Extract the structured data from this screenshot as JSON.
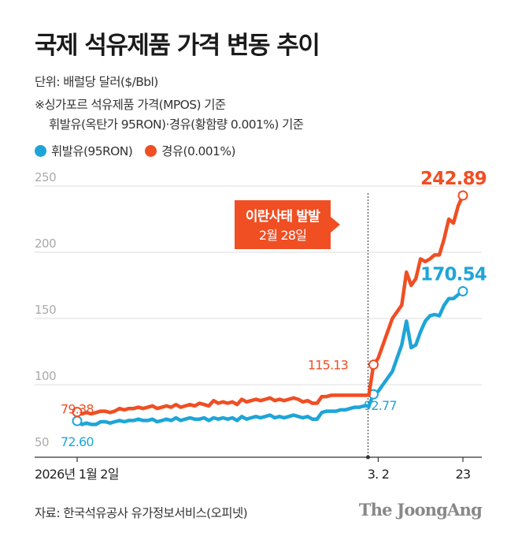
{
  "title": "국제 석유제품 가격 변동 추이",
  "notes": {
    "unit": "단위: 배럴당 달러($/Bbl)",
    "basis_line1": "※싱가포르 석유제품 가격(MPOS) 기준",
    "basis_line2": "휘발유(옥탄가 95RON)·경유(황함량 0.001%) 기준"
  },
  "source": "자료: 한국석유공사 유가정보서비스(오피넷)",
  "brand": "The JoongAng",
  "colors": {
    "gasoline": "#1ea5d8",
    "diesel": "#f04e23",
    "axis": "#bbbbbb",
    "text": "#222222"
  },
  "chart_data": {
    "type": "line",
    "ylim": [
      50,
      250
    ],
    "yticks": [
      "250",
      "200",
      "150",
      "100",
      "50"
    ],
    "x_tick_labels": [
      "2026년 1월 2일",
      "3. 2",
      "23"
    ],
    "event": {
      "label": "이란사태 발발",
      "date_label": "2월 28일"
    },
    "series": [
      {
        "name": "휘발유(95RON)",
        "color": "#1ea5d8",
        "values": [
          72.6,
          70,
          71,
          70,
          70,
          72,
          72,
          71,
          72,
          73,
          72,
          73,
          73,
          74,
          73,
          73,
          74,
          72,
          73,
          74,
          73,
          75,
          73,
          74,
          75,
          74,
          74,
          75,
          73,
          75,
          74,
          75,
          74,
          75,
          73,
          76,
          74,
          75,
          76,
          75,
          76,
          77,
          75,
          76,
          75,
          76,
          77,
          76,
          75,
          76,
          74,
          74,
          79,
          80,
          80,
          80,
          81,
          81,
          82,
          83,
          83,
          84,
          84,
          92.77,
          95,
          100,
          105,
          110,
          120,
          130,
          148,
          128,
          130,
          140,
          148,
          152,
          153,
          152,
          160,
          165,
          165,
          168,
          170.54
        ],
        "labels": {
          "start": "72.60",
          "event": "92.77",
          "end": "170.54"
        }
      },
      {
        "name": "경유(0.001%)",
        "color": "#f04e23",
        "values": [
          79.38,
          78,
          79,
          78,
          79,
          80,
          80,
          79,
          80,
          82,
          81,
          82,
          82,
          83,
          82,
          83,
          84,
          82,
          83,
          84,
          83,
          85,
          83,
          84,
          85,
          84,
          86,
          85,
          84,
          88,
          86,
          87,
          86,
          87,
          85,
          89,
          87,
          88,
          89,
          88,
          89,
          90,
          88,
          89,
          88,
          89,
          90,
          89,
          87,
          88,
          86,
          86,
          91,
          91,
          92,
          92,
          92,
          92,
          92,
          92,
          92,
          92,
          92,
          115.13,
          120,
          130,
          140,
          150,
          155,
          160,
          185,
          175,
          180,
          195,
          193,
          195,
          198,
          198,
          210,
          225,
          222,
          235,
          242.89
        ],
        "labels": {
          "start": "79.38",
          "event": "115.13",
          "end": "242.89"
        }
      }
    ]
  }
}
